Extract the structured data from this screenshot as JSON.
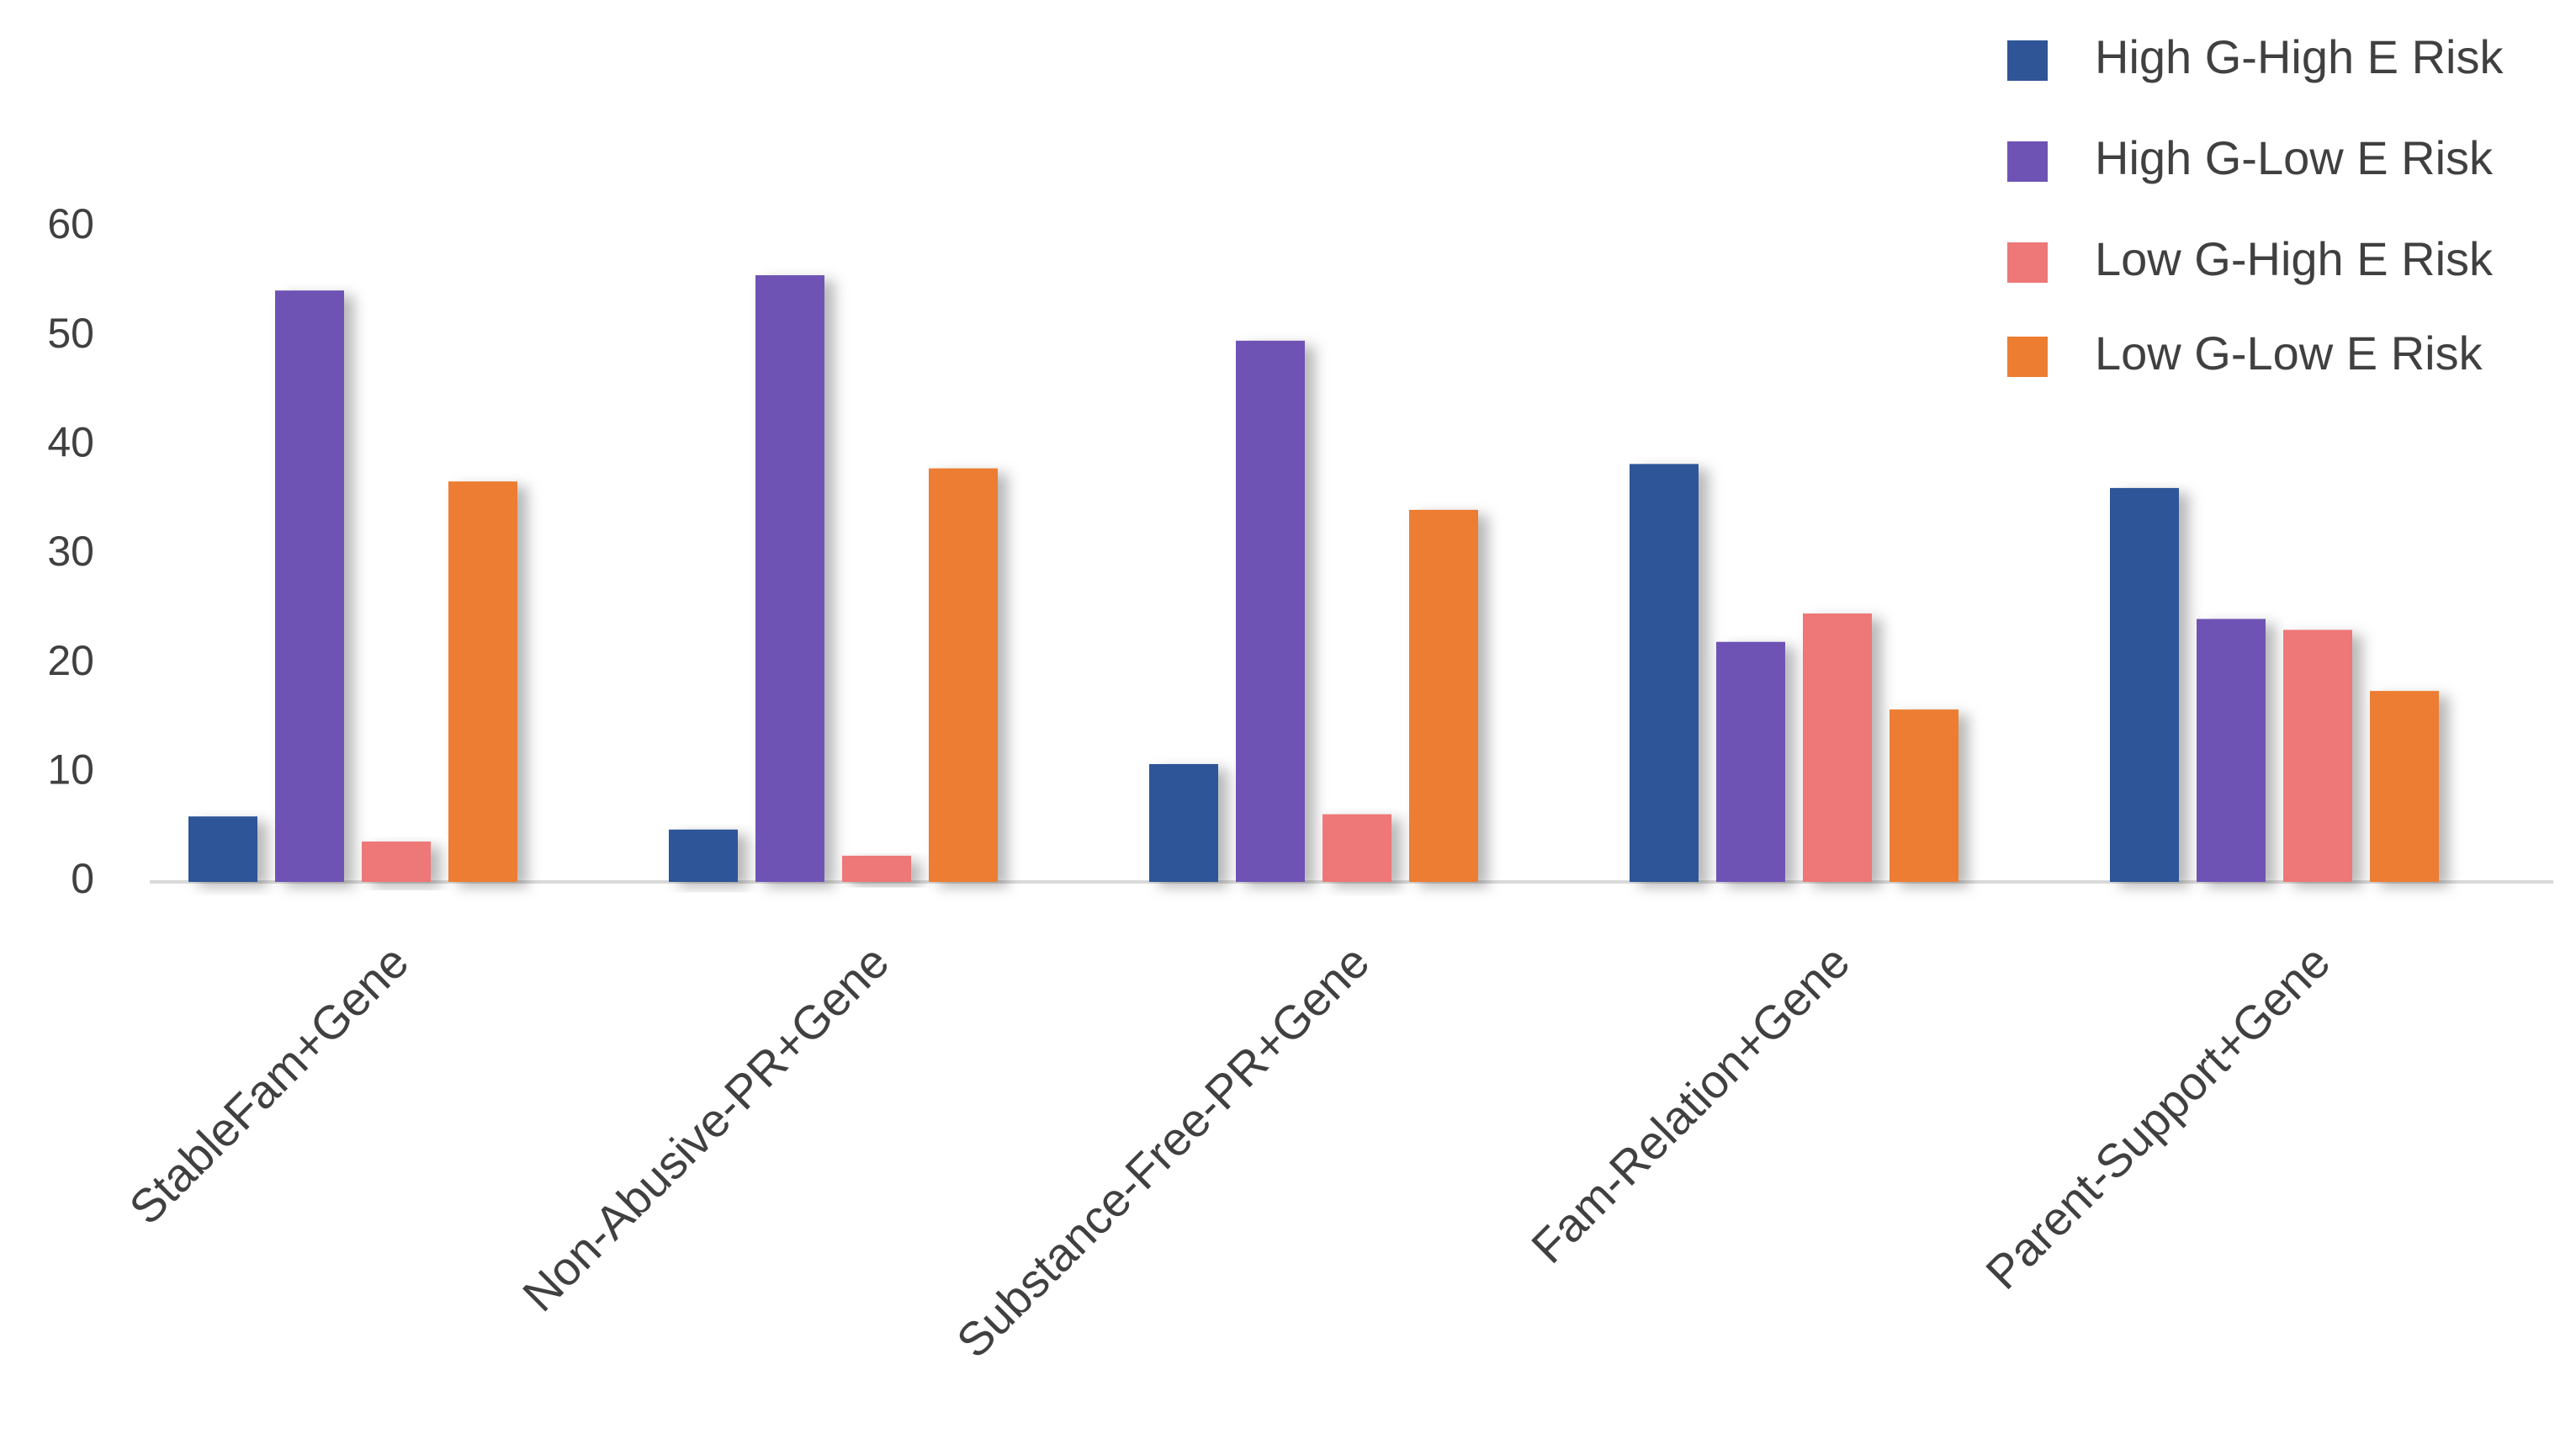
{
  "chart_data": {
    "type": "bar",
    "title": "",
    "xlabel": "",
    "ylabel": "",
    "ylim": [
      0,
      60
    ],
    "yticks": [
      0,
      10,
      20,
      30,
      40,
      50,
      60
    ],
    "grid": false,
    "legend_position": "top-right",
    "categories": [
      "StableFam+Gene",
      "Non-Abusive-PR+Gene",
      "Substance-Free-PR+Gene",
      "Fam-Relation+Gene",
      "Parent-Support+Gene"
    ],
    "series": [
      {
        "name": "High G-High E Risk",
        "color": "#2F5597",
        "values": [
          6,
          4.8,
          10.8,
          38.3,
          36.1
        ]
      },
      {
        "name": "High G-Low E Risk",
        "color": "#6E53B5",
        "values": [
          54.2,
          55.6,
          49.6,
          22,
          24.1
        ]
      },
      {
        "name": "Low G-High E Risk",
        "color": "#EE7777",
        "values": [
          3.7,
          2.4,
          6.2,
          24.6,
          23.1
        ]
      },
      {
        "name": "Low G-Low E Risk",
        "color": "#ED7D31",
        "values": [
          36.7,
          37.9,
          34.1,
          15.8,
          17.5
        ]
      }
    ]
  }
}
